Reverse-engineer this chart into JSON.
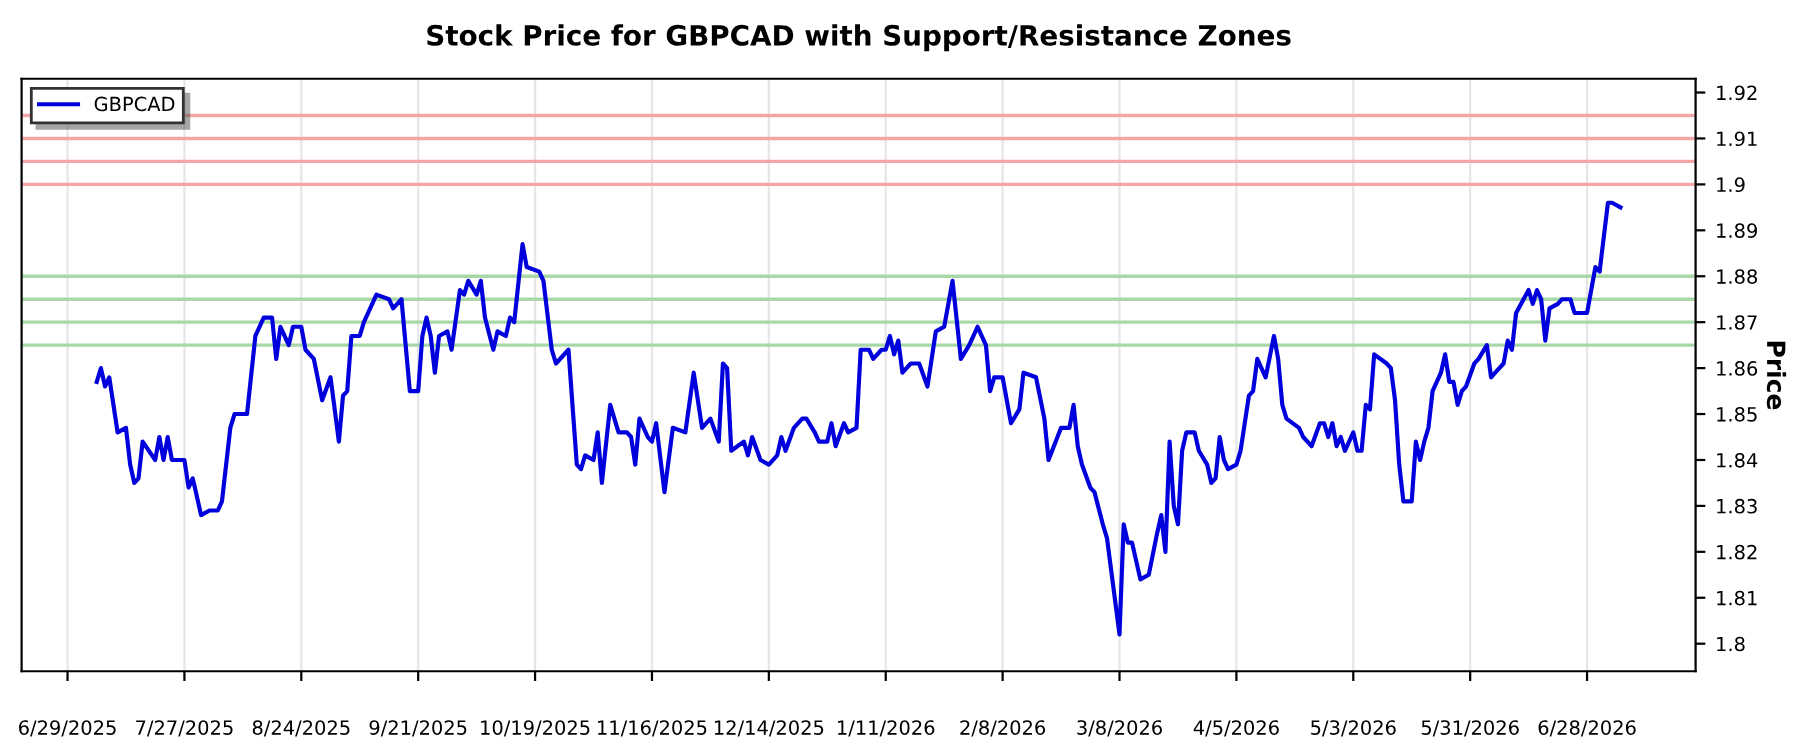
{
  "chart_data": {
    "type": "line",
    "title": "Stock Price for GBPCAD with Support/Resistance Zones",
    "ylabel": "Price",
    "xlim": [
      "2025-06-18",
      "2026-07-24"
    ],
    "ylim": [
      1.794,
      1.923
    ],
    "xticks": [
      {
        "value": "2025-06-29",
        "label": "6/29/2025"
      },
      {
        "value": "2025-07-27",
        "label": "7/27/2025"
      },
      {
        "value": "2025-08-24",
        "label": "8/24/2025"
      },
      {
        "value": "2025-09-21",
        "label": "9/21/2025"
      },
      {
        "value": "2025-10-19",
        "label": "10/19/2025"
      },
      {
        "value": "2025-11-16",
        "label": "11/16/2025"
      },
      {
        "value": "2025-12-14",
        "label": "12/14/2025"
      },
      {
        "value": "2026-01-11",
        "label": "1/11/2026"
      },
      {
        "value": "2026-02-08",
        "label": "2/8/2026"
      },
      {
        "value": "2026-03-08",
        "label": "3/8/2026"
      },
      {
        "value": "2026-04-05",
        "label": "4/5/2026"
      },
      {
        "value": "2026-05-03",
        "label": "5/3/2026"
      },
      {
        "value": "2026-05-31",
        "label": "5/31/2026"
      },
      {
        "value": "2026-06-28",
        "label": "6/28/2026"
      }
    ],
    "yticks": [
      1.8,
      1.81,
      1.82,
      1.83,
      1.84,
      1.85,
      1.86,
      1.87,
      1.88,
      1.89,
      1.9,
      1.91,
      1.92
    ],
    "grid": "x",
    "legend": "top left",
    "marker": "none",
    "line_style": "solid",
    "ref_lines": [
      {
        "axis": "y",
        "value": 1.9,
        "color": "#f4a6a6"
      },
      {
        "axis": "y",
        "value": 1.905,
        "color": "#f4a6a6"
      },
      {
        "axis": "y",
        "value": 1.91,
        "color": "#f4a6a6"
      },
      {
        "axis": "y",
        "value": 1.915,
        "color": "#f4a6a6"
      },
      {
        "axis": "y",
        "value": 1.865,
        "color": "#a8d8a8"
      },
      {
        "axis": "y",
        "value": 1.87,
        "color": "#a8d8a8"
      },
      {
        "axis": "y",
        "value": 1.875,
        "color": "#a8d8a8"
      },
      {
        "axis": "y",
        "value": 1.88,
        "color": "#a8d8a8"
      }
    ],
    "series": [
      {
        "name": "GBPCAD",
        "color": "#0000dd",
        "x": [
          "2025-07-06",
          "2025-07-07",
          "2025-07-08",
          "2025-07-09",
          "2025-07-11",
          "2025-07-13",
          "2025-07-14",
          "2025-07-15",
          "2025-07-16",
          "2025-07-17",
          "2025-07-20",
          "2025-07-21",
          "2025-07-22",
          "2025-07-23",
          "2025-07-24",
          "2025-07-27",
          "2025-07-28",
          "2025-07-29",
          "2025-07-31",
          "2025-08-02",
          "2025-08-04",
          "2025-08-05",
          "2025-08-07",
          "2025-08-08",
          "2025-08-11",
          "2025-08-13",
          "2025-08-15",
          "2025-08-17",
          "2025-08-18",
          "2025-08-19",
          "2025-08-21",
          "2025-08-22",
          "2025-08-24",
          "2025-08-25",
          "2025-08-27",
          "2025-08-29",
          "2025-08-31",
          "2025-09-02",
          "2025-09-03",
          "2025-09-04",
          "2025-09-05",
          "2025-09-07",
          "2025-09-08",
          "2025-09-11",
          "2025-09-14",
          "2025-09-15",
          "2025-09-17",
          "2025-09-19",
          "2025-09-21",
          "2025-09-22",
          "2025-09-23",
          "2025-09-24",
          "2025-09-25",
          "2025-09-26",
          "2025-09-28",
          "2025-09-29",
          "2025-10-01",
          "2025-10-02",
          "2025-10-03",
          "2025-10-05",
          "2025-10-06",
          "2025-10-07",
          "2025-10-09",
          "2025-10-10",
          "2025-10-12",
          "2025-10-13",
          "2025-10-14",
          "2025-10-16",
          "2025-10-17",
          "2025-10-20",
          "2025-10-21",
          "2025-10-23",
          "2025-10-24",
          "2025-10-27",
          "2025-10-29",
          "2025-10-30",
          "2025-10-31",
          "2025-11-02",
          "2025-11-03",
          "2025-11-04",
          "2025-11-06",
          "2025-11-08",
          "2025-11-10",
          "2025-11-11",
          "2025-11-12",
          "2025-11-13",
          "2025-11-15",
          "2025-11-16",
          "2025-11-17",
          "2025-11-19",
          "2025-11-21",
          "2025-11-24",
          "2025-11-26",
          "2025-11-28",
          "2025-11-30",
          "2025-12-02",
          "2025-12-03",
          "2025-12-04",
          "2025-12-05",
          "2025-12-08",
          "2025-12-09",
          "2025-12-10",
          "2025-12-12",
          "2025-12-14",
          "2025-12-16",
          "2025-12-17",
          "2025-12-18",
          "2025-12-20",
          "2025-12-22",
          "2025-12-23",
          "2025-12-25",
          "2025-12-26",
          "2025-12-28",
          "2025-12-29",
          "2025-12-30",
          "2026-01-01",
          "2026-01-02",
          "2026-01-04",
          "2026-01-05",
          "2026-01-07",
          "2026-01-08",
          "2026-01-10",
          "2026-01-11",
          "2026-01-12",
          "2026-01-13",
          "2026-01-14",
          "2026-01-15",
          "2026-01-17",
          "2026-01-19",
          "2026-01-21",
          "2026-01-23",
          "2026-01-25",
          "2026-01-27",
          "2026-01-29",
          "2026-01-31",
          "2026-02-02",
          "2026-02-04",
          "2026-02-05",
          "2026-02-06",
          "2026-02-08",
          "2026-02-10",
          "2026-02-12",
          "2026-02-13",
          "2026-02-16",
          "2026-02-18",
          "2026-02-19",
          "2026-02-22",
          "2026-02-24",
          "2026-02-25",
          "2026-02-26",
          "2026-02-27",
          "2026-03-01",
          "2026-03-02",
          "2026-03-04",
          "2026-03-05",
          "2026-03-06",
          "2026-03-08",
          "2026-03-09",
          "2026-03-10",
          "2026-03-11",
          "2026-03-13",
          "2026-03-15",
          "2026-03-17",
          "2026-03-18",
          "2026-03-19",
          "2026-03-20",
          "2026-03-21",
          "2026-03-22",
          "2026-03-23",
          "2026-03-24",
          "2026-03-26",
          "2026-03-27",
          "2026-03-29",
          "2026-03-30",
          "2026-03-31",
          "2026-04-01",
          "2026-04-02",
          "2026-04-03",
          "2026-04-05",
          "2026-04-06",
          "2026-04-08",
          "2026-04-09",
          "2026-04-10",
          "2026-04-12",
          "2026-04-14",
          "2026-04-15",
          "2026-04-16",
          "2026-04-17",
          "2026-04-20",
          "2026-04-21",
          "2026-04-23",
          "2026-04-25",
          "2026-04-26",
          "2026-04-27",
          "2026-04-28",
          "2026-04-29",
          "2026-04-30",
          "2026-05-01",
          "2026-05-02",
          "2026-05-03",
          "2026-05-04",
          "2026-05-05",
          "2026-05-06",
          "2026-05-07",
          "2026-05-08",
          "2026-05-11",
          "2026-05-12",
          "2026-05-13",
          "2026-05-14",
          "2026-05-15",
          "2026-05-17",
          "2026-05-18",
          "2026-05-19",
          "2026-05-20",
          "2026-05-21",
          "2026-05-22",
          "2026-05-24",
          "2026-05-25",
          "2026-05-26",
          "2026-05-27",
          "2026-05-28",
          "2026-05-29",
          "2026-05-30",
          "2026-06-01",
          "2026-06-02",
          "2026-06-04",
          "2026-06-05",
          "2026-06-06",
          "2026-06-08",
          "2026-06-09",
          "2026-06-10",
          "2026-06-11",
          "2026-06-14",
          "2026-06-15",
          "2026-06-16",
          "2026-06-17",
          "2026-06-18",
          "2026-06-19",
          "2026-06-21",
          "2026-06-22",
          "2026-06-24",
          "2026-06-25",
          "2026-06-26",
          "2026-06-28",
          "2026-06-30",
          "2026-07-01",
          "2026-07-03",
          "2026-07-04",
          "2026-07-06"
        ],
        "values": [
          1.857,
          1.86,
          1.856,
          1.858,
          1.846,
          1.847,
          1.839,
          1.835,
          1.836,
          1.844,
          1.84,
          1.845,
          1.84,
          1.845,
          1.84,
          1.84,
          1.834,
          1.836,
          1.828,
          1.829,
          1.829,
          1.831,
          1.847,
          1.85,
          1.85,
          1.867,
          1.871,
          1.871,
          1.862,
          1.869,
          1.865,
          1.869,
          1.869,
          1.864,
          1.862,
          1.853,
          1.858,
          1.844,
          1.854,
          1.855,
          1.867,
          1.867,
          1.87,
          1.876,
          1.875,
          1.873,
          1.875,
          1.855,
          1.855,
          1.867,
          1.871,
          1.867,
          1.859,
          1.867,
          1.868,
          1.864,
          1.877,
          1.876,
          1.879,
          1.876,
          1.879,
          1.871,
          1.864,
          1.868,
          1.867,
          1.871,
          1.87,
          1.887,
          1.882,
          1.881,
          1.879,
          1.864,
          1.861,
          1.864,
          1.839,
          1.838,
          1.841,
          1.84,
          1.846,
          1.835,
          1.852,
          1.846,
          1.846,
          1.845,
          1.839,
          1.849,
          1.845,
          1.844,
          1.848,
          1.833,
          1.847,
          1.846,
          1.859,
          1.847,
          1.849,
          1.844,
          1.861,
          1.86,
          1.842,
          1.844,
          1.841,
          1.845,
          1.84,
          1.839,
          1.841,
          1.845,
          1.842,
          1.847,
          1.849,
          1.849,
          1.846,
          1.844,
          1.844,
          1.848,
          1.843,
          1.848,
          1.846,
          1.847,
          1.864,
          1.864,
          1.862,
          1.864,
          1.864,
          1.867,
          1.863,
          1.866,
          1.859,
          1.861,
          1.861,
          1.856,
          1.868,
          1.869,
          1.879,
          1.862,
          1.865,
          1.869,
          1.865,
          1.855,
          1.858,
          1.858,
          1.848,
          1.851,
          1.859,
          1.858,
          1.849,
          1.84,
          1.847,
          1.847,
          1.852,
          1.843,
          1.839,
          1.834,
          1.833,
          1.826,
          1.823,
          1.816,
          1.802,
          1.826,
          1.822,
          1.822,
          1.814,
          1.815,
          1.824,
          1.828,
          1.82,
          1.844,
          1.83,
          1.826,
          1.842,
          1.846,
          1.846,
          1.842,
          1.839,
          1.835,
          1.836,
          1.845,
          1.84,
          1.838,
          1.839,
          1.842,
          1.854,
          1.855,
          1.862,
          1.858,
          1.867,
          1.862,
          1.852,
          1.849,
          1.847,
          1.845,
          1.843,
          1.848,
          1.848,
          1.845,
          1.848,
          1.843,
          1.845,
          1.842,
          1.844,
          1.846,
          1.842,
          1.842,
          1.852,
          1.851,
          1.863,
          1.861,
          1.86,
          1.853,
          1.839,
          1.831,
          1.831,
          1.844,
          1.84,
          1.844,
          1.847,
          1.855,
          1.859,
          1.863,
          1.857,
          1.857,
          1.852,
          1.855,
          1.856,
          1.861,
          1.862,
          1.865,
          1.858,
          1.859,
          1.861,
          1.866,
          1.864,
          1.872,
          1.877,
          1.874,
          1.877,
          1.875,
          1.866,
          1.873,
          1.874,
          1.875,
          1.875,
          1.872,
          1.872,
          1.872,
          1.882,
          1.881,
          1.896,
          1.896,
          1.895
        ]
      }
    ]
  }
}
